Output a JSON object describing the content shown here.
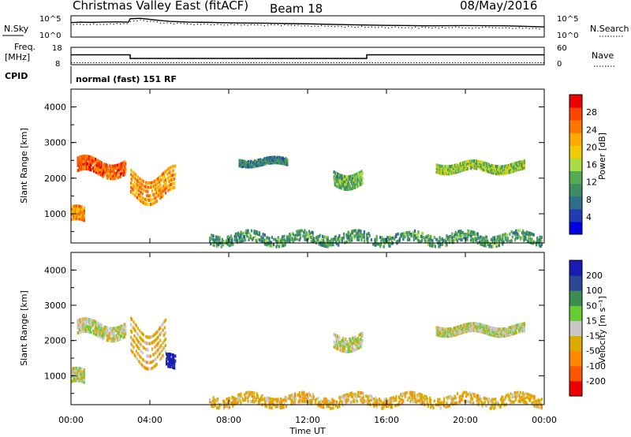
{
  "header": {
    "radar_title": "Christmas Valley East (fitACF)",
    "beam": "Beam 18",
    "date": "08/May/2016"
  },
  "left_labels": {
    "nsky": "N.Sky",
    "freq_line1": "Freq.",
    "freq_line2": "[MHz]",
    "cpid": "CPID"
  },
  "right_labels": {
    "nsearch": "N.Search",
    "nave": "Nave"
  },
  "cpid_text": "normal (fast) 151 RF",
  "colors": {
    "power_scale": [
      "#0000e0",
      "#1f3cb4",
      "#2d6e8c",
      "#3c8c64",
      "#55aa55",
      "#aadd44",
      "#eecc00",
      "#ffaa00",
      "#ff7700",
      "#ff4400",
      "#ee0000"
    ],
    "velocity_scale": [
      "#1a1ab4",
      "#2d4696",
      "#3c8c50",
      "#66cc33",
      "#c8c8c8",
      "#ddaa00",
      "#ff8800",
      "#ff5500",
      "#ee0000"
    ]
  },
  "chart_data": [
    {
      "type": "line",
      "panel": "noise",
      "title": "",
      "left_axis_label": "N.Sky",
      "right_axis_label": "N.Search",
      "left_ticks": [
        "10^5",
        "10^0"
      ],
      "right_ticks": [
        "10^5",
        "10^0"
      ],
      "x": [
        "00:00",
        "00:30",
        "01:00",
        "01:30",
        "02:00",
        "02:30",
        "02:55",
        "03:00",
        "03:30",
        "04:00",
        "04:30",
        "05:00",
        "06:00",
        "07:00",
        "08:00",
        "10:00",
        "12:00",
        "14:00",
        "16:00",
        "18:00",
        "20:00",
        "22:00",
        "23:59"
      ],
      "series": [
        {
          "values": [
            0.32,
            0.3,
            0.31,
            0.3,
            0.29,
            0.29,
            0.3,
            0.14,
            0.12,
            0.17,
            0.22,
            0.26,
            0.3,
            0.31,
            0.33,
            0.35,
            0.38,
            0.42,
            0.45,
            0.47,
            0.46,
            0.47,
            0.52
          ]
        }
      ]
    },
    {
      "type": "line",
      "panel": "frequency",
      "left_ticks": [
        "18",
        "8"
      ],
      "right_ticks": [
        "60",
        "0"
      ],
      "x": [
        "00:00",
        "03:00",
        "03:00",
        "15:00",
        "15:00",
        "24:00"
      ],
      "series": [
        {
          "values": [
            13.7,
            13.7,
            11.6,
            11.6,
            13.7,
            13.7
          ]
        },
        {
          "values": [
            9.1,
            9.1,
            9.1,
            9.1,
            9.1,
            9.1
          ]
        }
      ]
    },
    {
      "type": "heatmap",
      "panel": "power",
      "ylabel": "Slant Range [km]",
      "yticks": [
        "1000",
        "2000",
        "3000",
        "4000"
      ],
      "ylim": [
        180,
        4500
      ],
      "xlim": [
        "00:00",
        "24:00"
      ],
      "colorbar_label": "Power [dB]",
      "colorbar_ticks": [
        "4",
        "8",
        "12",
        "16",
        "20",
        "24",
        "28"
      ],
      "features": [
        {
          "t_start": 0.3,
          "t_end": 2.8,
          "range_center": 2300,
          "range_width": 350,
          "level_db": 26
        },
        {
          "t_start": 0.0,
          "t_end": 0.7,
          "range_center": 900,
          "range_width": 350,
          "level_db": 22
        },
        {
          "t_start": 3.0,
          "t_end": 5.3,
          "range_center": 1800,
          "range_width": 600,
          "level_db": 22
        },
        {
          "t_start": 8.5,
          "t_end": 11.0,
          "range_center": 2450,
          "range_width": 150,
          "level_db": 8
        },
        {
          "t_start": 13.3,
          "t_end": 14.8,
          "range_center": 2000,
          "range_width": 350,
          "level_db": 12
        },
        {
          "t_start": 18.5,
          "t_end": 23.0,
          "range_center": 2300,
          "range_width": 200,
          "level_db": 14
        },
        {
          "t_start": 7.0,
          "t_end": 23.9,
          "range_center": 300,
          "range_width": 250,
          "level_db": 10
        }
      ]
    },
    {
      "type": "heatmap",
      "panel": "velocity",
      "ylabel": "Slant Range [km]",
      "xlabel": "Time UT",
      "yticks": [
        "1000",
        "2000",
        "3000",
        "4000"
      ],
      "ylim": [
        180,
        4500
      ],
      "xticks": [
        "00:00",
        "04:00",
        "08:00",
        "12:00",
        "16:00",
        "20:00",
        "00:00"
      ],
      "colorbar_label": "Velocity [m s⁻¹]",
      "colorbar_ticks": [
        "200",
        "100",
        "50",
        "15",
        "-15",
        "-50",
        "-100",
        "-200"
      ],
      "features": [
        {
          "t_start": 0.3,
          "t_end": 2.8,
          "range_center": 2300,
          "range_width": 350,
          "velocity": 0
        },
        {
          "t_start": 0.0,
          "t_end": 0.7,
          "range_center": 900,
          "range_width": 350,
          "velocity": 0
        },
        {
          "t_start": 3.0,
          "t_end": 4.8,
          "range_center": 2000,
          "range_width": 900,
          "velocity": -30
        },
        {
          "t_start": 4.8,
          "t_end": 5.3,
          "range_center": 1300,
          "range_width": 350,
          "velocity": 220
        },
        {
          "t_start": 13.3,
          "t_end": 14.8,
          "range_center": 2000,
          "range_width": 350,
          "velocity": 0
        },
        {
          "t_start": 18.5,
          "t_end": 23.0,
          "range_center": 2300,
          "range_width": 200,
          "velocity": 0
        },
        {
          "t_start": 7.0,
          "t_end": 23.9,
          "range_center": 300,
          "range_width": 250,
          "velocity": -30
        }
      ]
    }
  ]
}
